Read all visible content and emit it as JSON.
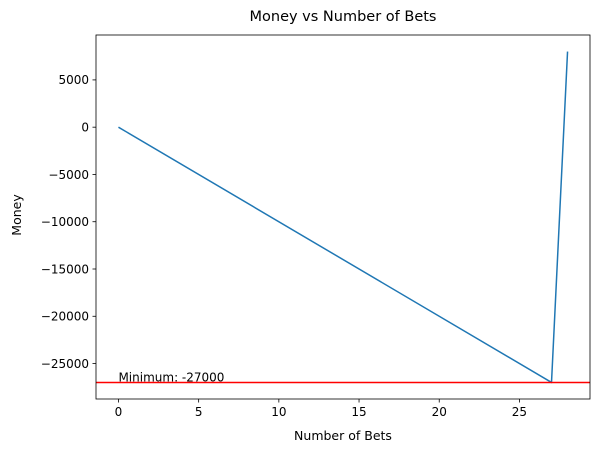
{
  "chart_data": {
    "type": "line",
    "title": "Money vs Number of Bets",
    "xlabel": "Number of Bets",
    "ylabel": "Money",
    "xlim": [
      -1.4,
      29.4
    ],
    "ylim": [
      -28750,
      9750
    ],
    "x_ticks": [
      0,
      5,
      10,
      15,
      20,
      25
    ],
    "x_tick_labels": [
      "0",
      "5",
      "10",
      "15",
      "20",
      "25"
    ],
    "y_ticks": [
      5000,
      0,
      -5000,
      -10000,
      -15000,
      -20000,
      -25000
    ],
    "y_tick_labels": [
      "5000",
      "0",
      "−5000",
      "−10000",
      "−15000",
      "−20000",
      "−25000"
    ],
    "grid": false,
    "series": [
      {
        "color": "#1f77b4",
        "x": [
          0,
          27,
          28
        ],
        "y": [
          0,
          -27000,
          8000
        ]
      }
    ],
    "hline": {
      "y": -27000,
      "color": "#ff0000"
    },
    "annotation": {
      "text": "Minimum: -27000",
      "x": 0,
      "y": -27000
    }
  }
}
